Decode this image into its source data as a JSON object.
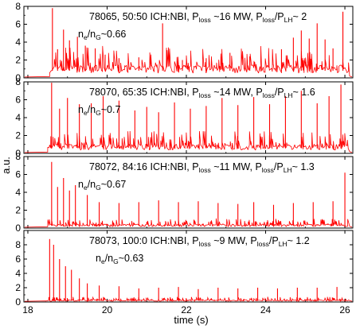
{
  "chart_data": {
    "type": "line",
    "xlabel": "time (s)",
    "ylabel": "a.u.",
    "xlim": [
      17.9,
      26.2
    ],
    "xticks": [
      "18",
      "20",
      "22",
      "24",
      "26"
    ],
    "line_color": "#ff0000",
    "panels": [
      {
        "shot": "78065,",
        "mix": "50:50 ICH:NBI,",
        "ploss": "~16 MW,",
        "ratio": "~ 2",
        "density": "~0.66",
        "ylim": [
          0,
          8
        ],
        "yticks": [
          "0",
          "2",
          "4",
          "6",
          "8"
        ],
        "onset": 18.55,
        "baseline": 1.0,
        "bursts": [
          {
            "x": 18.62,
            "y": 7.8
          },
          {
            "x": 18.75,
            "y": 3.2
          },
          {
            "x": 18.9,
            "y": 5.4
          },
          {
            "x": 19.05,
            "y": 4.2
          },
          {
            "x": 19.25,
            "y": 4.6
          },
          {
            "x": 19.45,
            "y": 3.6
          },
          {
            "x": 19.7,
            "y": 3.3
          },
          {
            "x": 19.95,
            "y": 2.6
          },
          {
            "x": 20.3,
            "y": 2.2
          },
          {
            "x": 20.8,
            "y": 2.3
          },
          {
            "x": 21.4,
            "y": 6.1
          },
          {
            "x": 21.9,
            "y": 2.0
          },
          {
            "x": 22.5,
            "y": 2.2
          },
          {
            "x": 23.1,
            "y": 2.8
          },
          {
            "x": 23.6,
            "y": 2.4
          },
          {
            "x": 24.4,
            "y": 3.2
          },
          {
            "x": 24.7,
            "y": 4.5
          },
          {
            "x": 24.9,
            "y": 5.3
          },
          {
            "x": 25.1,
            "y": 4.4
          },
          {
            "x": 25.3,
            "y": 6.1
          },
          {
            "x": 25.5,
            "y": 4.3
          },
          {
            "x": 25.7,
            "y": 3.3
          },
          {
            "x": 25.95,
            "y": 7.4
          }
        ]
      },
      {
        "shot": "78070,",
        "mix": "65:35 ICH:NBI,",
        "ploss": "~14 MW,",
        "ratio": "~ 1.6",
        "density": "~0.7",
        "ylim": [
          0,
          8
        ],
        "yticks": [
          "0",
          "2",
          "4",
          "6",
          "8"
        ],
        "onset": 18.5,
        "baseline": 0.7,
        "bursts": [
          {
            "x": 18.6,
            "y": 7.9
          },
          {
            "x": 18.8,
            "y": 5.0
          },
          {
            "x": 19.0,
            "y": 6.2
          },
          {
            "x": 19.3,
            "y": 5.5
          },
          {
            "x": 19.6,
            "y": 5.6
          },
          {
            "x": 19.9,
            "y": 6.4
          },
          {
            "x": 20.3,
            "y": 5.9
          },
          {
            "x": 20.7,
            "y": 4.8
          },
          {
            "x": 21.0,
            "y": 5.2
          },
          {
            "x": 21.3,
            "y": 4.6
          },
          {
            "x": 21.7,
            "y": 5.7
          },
          {
            "x": 22.1,
            "y": 5.0
          },
          {
            "x": 22.5,
            "y": 5.3
          },
          {
            "x": 22.9,
            "y": 6.2
          },
          {
            "x": 23.3,
            "y": 5.4
          },
          {
            "x": 23.7,
            "y": 6.3
          },
          {
            "x": 24.1,
            "y": 5.5
          },
          {
            "x": 24.5,
            "y": 6.4
          },
          {
            "x": 24.9,
            "y": 7.0
          },
          {
            "x": 25.3,
            "y": 5.6
          },
          {
            "x": 25.6,
            "y": 6.4
          },
          {
            "x": 25.9,
            "y": 7.7
          }
        ]
      },
      {
        "shot": "78072,",
        "mix": "84:16 ICH:NBI,",
        "ploss": "~11 MW,",
        "ratio": "~ 1.3",
        "density": "~0.67",
        "ylim": [
          0,
          8
        ],
        "yticks": [
          "0",
          "2",
          "4",
          "6",
          "8"
        ],
        "onset": 18.5,
        "baseline": 0.3,
        "bursts": [
          {
            "x": 18.6,
            "y": 7.4
          },
          {
            "x": 18.75,
            "y": 4.6
          },
          {
            "x": 18.9,
            "y": 5.6
          },
          {
            "x": 19.05,
            "y": 4.2
          },
          {
            "x": 19.2,
            "y": 4.8
          },
          {
            "x": 19.5,
            "y": 3.7
          },
          {
            "x": 19.8,
            "y": 2.9
          },
          {
            "x": 20.3,
            "y": 2.8
          },
          {
            "x": 20.8,
            "y": 2.9
          },
          {
            "x": 21.3,
            "y": 3.1
          },
          {
            "x": 21.8,
            "y": 2.9
          },
          {
            "x": 22.3,
            "y": 3.0
          },
          {
            "x": 22.8,
            "y": 2.8
          },
          {
            "x": 23.3,
            "y": 2.7
          },
          {
            "x": 23.7,
            "y": 2.9
          },
          {
            "x": 24.2,
            "y": 2.6
          },
          {
            "x": 24.7,
            "y": 2.8
          },
          {
            "x": 25.2,
            "y": 2.9
          },
          {
            "x": 25.7,
            "y": 3.0
          },
          {
            "x": 26.0,
            "y": 6.2
          }
        ]
      },
      {
        "shot": "78073,",
        "mix": "100:0 ICH:NBI,",
        "ploss": "~9 MW,",
        "ratio": "~ 1.2",
        "density": "~0.63",
        "ylim": [
          0,
          10
        ],
        "yticks": [
          "0",
          "2",
          "4",
          "6",
          "8"
        ],
        "onset": 18.45,
        "baseline": 0.2,
        "bursts": [
          {
            "x": 18.55,
            "y": 8.8
          },
          {
            "x": 18.65,
            "y": 8.0
          },
          {
            "x": 18.8,
            "y": 6.0
          },
          {
            "x": 18.95,
            "y": 5.0
          },
          {
            "x": 19.1,
            "y": 4.5
          },
          {
            "x": 19.3,
            "y": 3.3
          },
          {
            "x": 19.5,
            "y": 2.6
          },
          {
            "x": 19.8,
            "y": 2.3
          },
          {
            "x": 20.3,
            "y": 2.2
          },
          {
            "x": 20.8,
            "y": 1.9
          },
          {
            "x": 21.3,
            "y": 2.0
          },
          {
            "x": 21.8,
            "y": 2.1
          },
          {
            "x": 22.3,
            "y": 1.8
          },
          {
            "x": 22.8,
            "y": 2.0
          },
          {
            "x": 23.3,
            "y": 1.9
          },
          {
            "x": 23.8,
            "y": 2.0
          },
          {
            "x": 24.3,
            "y": 1.9
          },
          {
            "x": 24.8,
            "y": 2.0
          },
          {
            "x": 25.3,
            "y": 2.0
          },
          {
            "x": 25.8,
            "y": 2.1
          }
        ]
      }
    ]
  }
}
